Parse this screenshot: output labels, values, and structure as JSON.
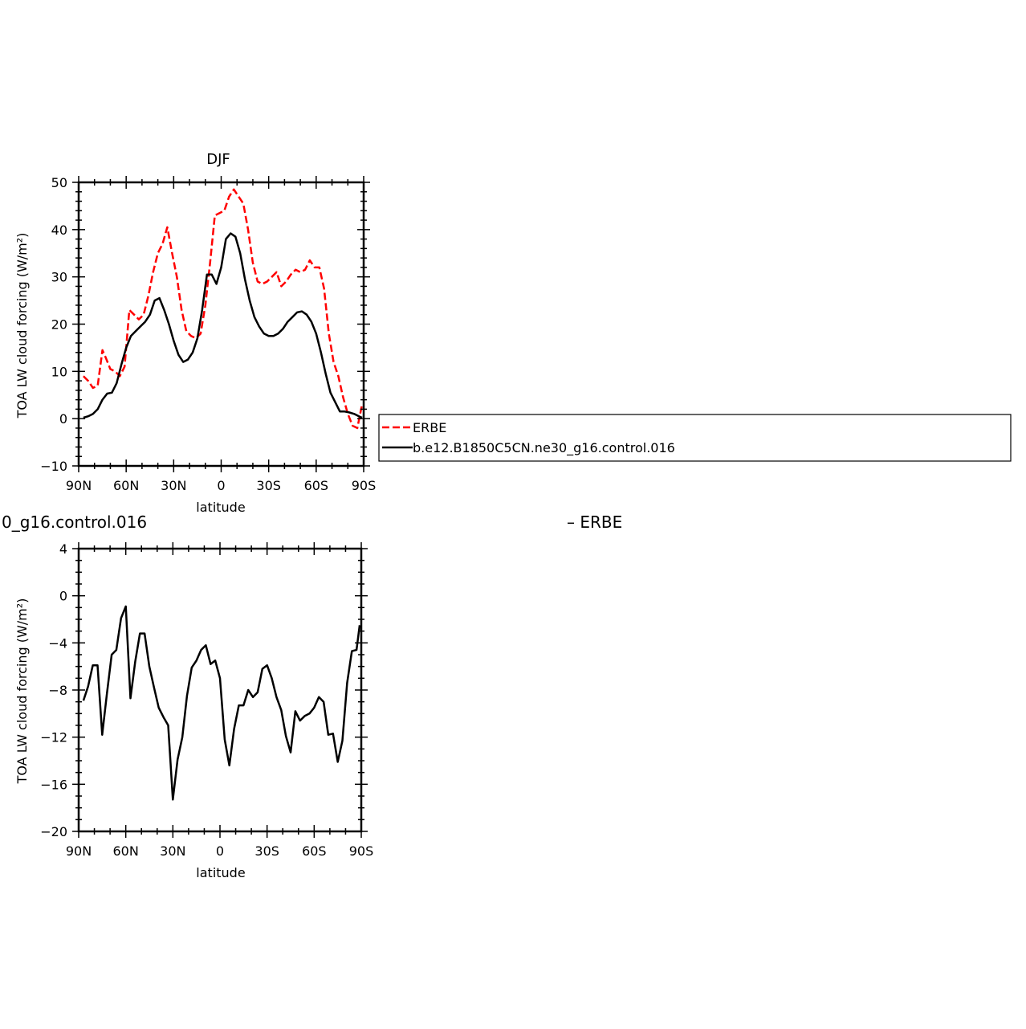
{
  "chart_data": [
    {
      "type": "line",
      "title": "DJF",
      "xlabel": "latitude",
      "ylabel": "TOA LW cloud forcing (W/m²)",
      "xlim": [
        90,
        -90
      ],
      "ylim": [
        -10,
        50
      ],
      "x_ticks": [
        90,
        60,
        30,
        0,
        -30,
        -60,
        -90
      ],
      "x_tick_labels": [
        "90N",
        "60N",
        "30N",
        "0",
        "30S",
        "60S",
        "90S"
      ],
      "y_ticks": [
        -10,
        0,
        10,
        20,
        30,
        40,
        50
      ],
      "y_tick_labels": [
        "−10",
        "0",
        "10",
        "20",
        "30",
        "40",
        "50"
      ],
      "legend_position": "right",
      "series": [
        {
          "name": "ERBE",
          "color": "#ff0000",
          "dash": "dashed",
          "x": [
            87,
            84,
            81,
            78,
            75,
            73,
            70,
            67,
            64,
            61,
            58,
            55,
            52,
            49,
            46,
            43,
            40,
            37,
            34,
            31,
            28,
            25,
            22,
            19,
            16,
            13,
            10,
            7,
            4,
            1,
            -2,
            -5,
            -8,
            -11,
            -14,
            -17,
            -20,
            -23,
            -26,
            -29,
            -32,
            -35,
            -38,
            -41,
            -44,
            -47,
            -50,
            -53,
            -56,
            -59,
            -62,
            -65,
            -68,
            -71,
            -74,
            -77,
            -80,
            -83,
            -86,
            -89
          ],
          "y": [
            9,
            8,
            6.5,
            7,
            14.5,
            13,
            10.5,
            10,
            9,
            11,
            23,
            22,
            21,
            22,
            26,
            31,
            35,
            37,
            40.5,
            35,
            30,
            23,
            18.5,
            17.5,
            17,
            18,
            24,
            33,
            43,
            43.5,
            44,
            47,
            48.5,
            47,
            45.5,
            40,
            33,
            29,
            28.5,
            29,
            30,
            31,
            28,
            29,
            30.5,
            31.5,
            31,
            31.5,
            33.5,
            32,
            32,
            27.5,
            18,
            12,
            9,
            4.5,
            1,
            -1.5,
            -2,
            3
          ]
        },
        {
          "name": "b.e12.B1850C5CN.ne30_g16.control.016",
          "color": "#000000",
          "dash": "solid",
          "x": [
            87,
            84,
            81,
            78,
            75,
            72,
            69,
            66,
            63,
            60,
            57,
            54,
            51,
            48,
            45,
            42,
            39,
            36,
            33,
            30,
            27,
            24,
            21,
            18,
            15,
            12,
            9,
            6,
            3,
            0,
            -3,
            -6,
            -9,
            -12,
            -15,
            -18,
            -21,
            -24,
            -27,
            -30,
            -33,
            -36,
            -39,
            -42,
            -45,
            -48,
            -51,
            -54,
            -57,
            -60,
            -63,
            -66,
            -69,
            -72,
            -75,
            -78,
            -81,
            -84,
            -87,
            -89
          ],
          "y": [
            0.2,
            0.5,
            1,
            2,
            4,
            5.3,
            5.5,
            7.5,
            11.5,
            15,
            17.5,
            18.5,
            19.5,
            20.5,
            22,
            25,
            25.5,
            23,
            20,
            16.5,
            13.5,
            12,
            12.5,
            14,
            17,
            23,
            30.5,
            30.5,
            28.5,
            32,
            38,
            39.2,
            38.5,
            35,
            29.5,
            25,
            21.5,
            19.5,
            18,
            17.5,
            17.5,
            18,
            19,
            20.5,
            21.5,
            22.5,
            22.7,
            22,
            20.5,
            18,
            14,
            9.5,
            5.5,
            3.5,
            1.5,
            1.5,
            1.3,
            1,
            0.5,
            0.2
          ]
        }
      ]
    },
    {
      "type": "line",
      "title": "0_g16.control.016",
      "title_right": "– ERBE",
      "xlabel": "latitude",
      "ylabel": "TOA LW cloud forcing (W/m²)",
      "xlim": [
        90,
        -90
      ],
      "ylim": [
        -20,
        4
      ],
      "x_ticks": [
        90,
        60,
        30,
        0,
        -30,
        -60,
        -90
      ],
      "x_tick_labels": [
        "90N",
        "60N",
        "30N",
        "0",
        "30S",
        "60S",
        "90S"
      ],
      "y_ticks": [
        -20,
        -16,
        -12,
        -8,
        -4,
        0,
        4
      ],
      "y_tick_labels": [
        "−20",
        "−16",
        "−12",
        "−8",
        "−4",
        "0",
        "4"
      ],
      "series": [
        {
          "color": "#000000",
          "dash": "solid",
          "x": [
            87,
            84,
            81,
            78,
            75,
            72,
            69,
            66,
            63,
            60,
            57,
            54,
            51,
            48,
            45,
            42,
            39,
            36,
            33,
            30,
            27,
            24,
            21,
            18,
            15,
            12,
            9,
            6,
            3,
            0,
            -3,
            -6,
            -9,
            -12,
            -15,
            -18,
            -21,
            -24,
            -27,
            -30,
            -33,
            -36,
            -39,
            -42,
            -45,
            -48,
            -51,
            -54,
            -57,
            -60,
            -63,
            -66,
            -69,
            -72,
            -75,
            -78,
            -81,
            -84,
            -87,
            -89
          ],
          "y": [
            -8.9,
            -7.7,
            -5.9,
            -5.9,
            -11.8,
            -8.3,
            -5,
            -4.6,
            -1.9,
            -0.9,
            -8.7,
            -5.6,
            -3.2,
            -3.2,
            -6,
            -7.8,
            -9.5,
            -10.3,
            -11,
            -17.3,
            -13.9,
            -12,
            -8.5,
            -6.1,
            -5.5,
            -4.6,
            -4.2,
            -5.8,
            -5.5,
            -7,
            -12.2,
            -14.4,
            -11.3,
            -9.3,
            -9.3,
            -8,
            -8.6,
            -8.2,
            -6.2,
            -5.9,
            -7,
            -8.6,
            -9.7,
            -11.9,
            -13.3,
            -9.8,
            -10.6,
            -10.2,
            -10,
            -9.5,
            -8.6,
            -9,
            -11.8,
            -11.7,
            -14.1,
            -12.3,
            -7.4,
            -4.7,
            -4.6,
            -2.5
          ]
        }
      ]
    }
  ]
}
